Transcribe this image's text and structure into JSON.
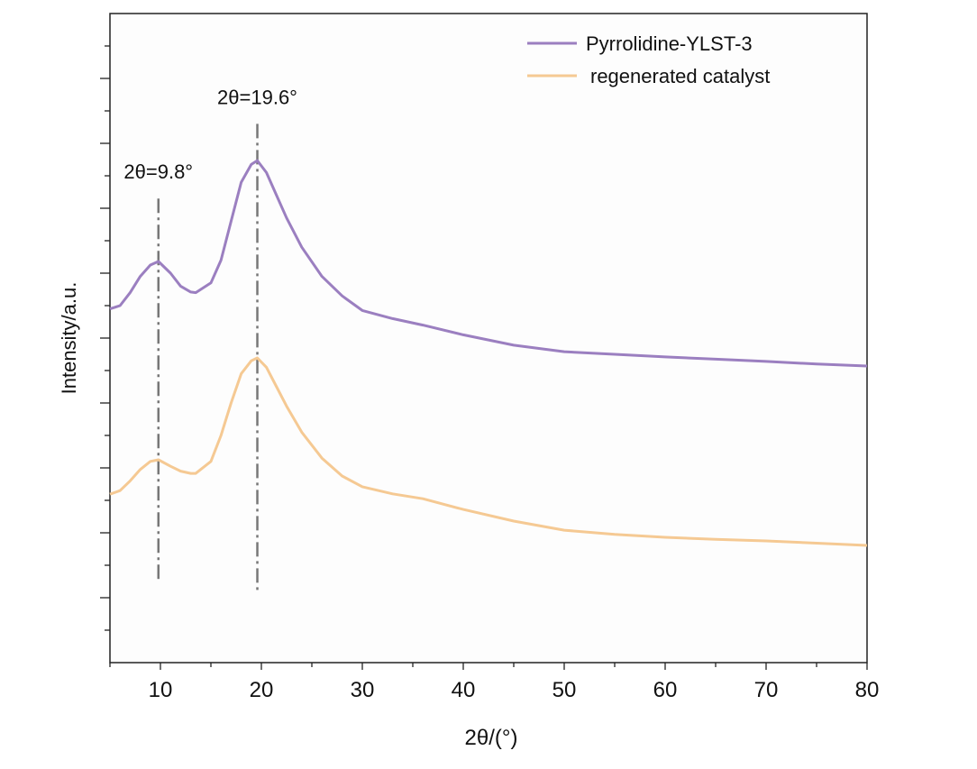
{
  "chart_data": {
    "type": "line",
    "title": "",
    "xlabel": "2θ/(°)",
    "ylabel": "Intensity/a.u.",
    "xlim": [
      5,
      80
    ],
    "ylim": [
      0,
      20
    ],
    "xticks": [
      10,
      20,
      30,
      40,
      50,
      60,
      70,
      80
    ],
    "show_y_tick_labels": false,
    "grid": false,
    "legend_position": "top-right",
    "x": [
      5,
      6,
      7,
      8,
      9,
      9.8,
      11,
      12,
      13,
      13.5,
      15,
      16,
      17,
      18,
      19,
      19.6,
      20.5,
      21.5,
      22.5,
      24,
      26,
      28,
      30,
      33,
      36,
      40,
      45,
      50,
      55,
      60,
      65,
      70,
      75,
      80
    ],
    "series": [
      {
        "name": "Pyrrolidine-YLST-3",
        "color": "#9b7fc0",
        "values": [
          10.9,
          11.0,
          11.4,
          11.9,
          12.25,
          12.36,
          12.0,
          11.6,
          11.42,
          11.4,
          11.7,
          12.4,
          13.6,
          14.8,
          15.35,
          15.47,
          15.1,
          14.4,
          13.7,
          12.8,
          11.9,
          11.3,
          10.85,
          10.6,
          10.4,
          10.1,
          9.78,
          9.58,
          9.5,
          9.42,
          9.35,
          9.28,
          9.2,
          9.14
        ]
      },
      {
        "name": "regenerated catalyst",
        "color": "#f5c993",
        "values": [
          5.19,
          5.3,
          5.6,
          5.95,
          6.2,
          6.25,
          6.05,
          5.9,
          5.83,
          5.83,
          6.2,
          7.0,
          8.0,
          8.9,
          9.3,
          9.39,
          9.1,
          8.5,
          7.9,
          7.1,
          6.3,
          5.75,
          5.42,
          5.2,
          5.05,
          4.72,
          4.36,
          4.08,
          3.95,
          3.86,
          3.8,
          3.75,
          3.68,
          3.61
        ]
      }
    ],
    "annotations": [
      {
        "text": "2θ=9.8°",
        "x": 9.8,
        "line_from": 2.5,
        "line_to": 14.3
      },
      {
        "text": "2θ=19.6°",
        "x": 19.6,
        "line_from": 2.1,
        "line_to": 16.6
      }
    ]
  }
}
